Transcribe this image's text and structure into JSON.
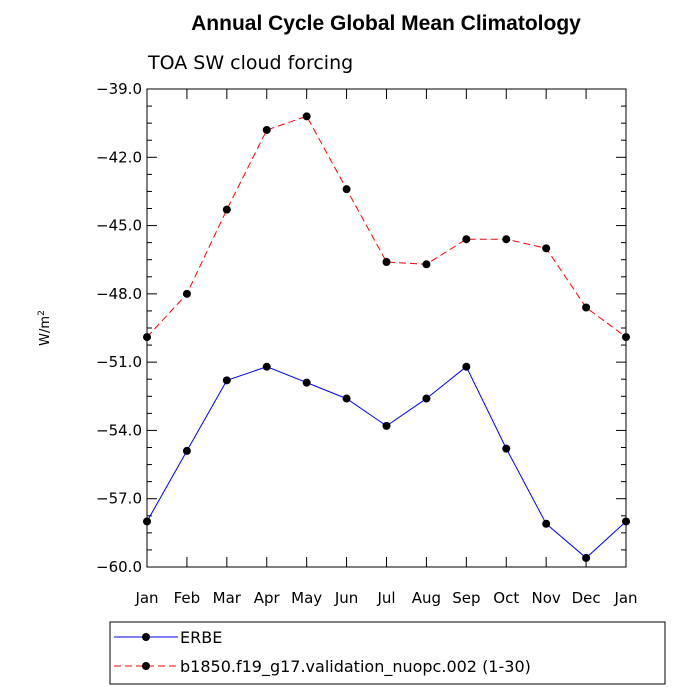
{
  "chart_data": {
    "type": "line",
    "title": "Annual Cycle Global Mean Climatology",
    "subtitle": "TOA SW cloud forcing",
    "ylabel": "W/m",
    "ylabel_superscript": "2",
    "xlabel": "",
    "ylim": [
      -60.0,
      -39.0
    ],
    "yticks": [
      -39.0,
      -42.0,
      -45.0,
      -48.0,
      -51.0,
      -54.0,
      -57.0,
      -60.0
    ],
    "ytick_labels": [
      "−39.0",
      "−42.0",
      "−45.0",
      "−48.0",
      "−51.0",
      "−54.0",
      "−57.0",
      "−60.0"
    ],
    "categories": [
      "Jan",
      "Feb",
      "Mar",
      "Apr",
      "May",
      "Jun",
      "Jul",
      "Aug",
      "Sep",
      "Oct",
      "Nov",
      "Dec",
      "Jan"
    ],
    "grid": false,
    "legend_position": "bottom",
    "series": [
      {
        "name": "ERBE",
        "color": "#0000ff",
        "dash": "solid",
        "marker": "filled-circle",
        "values": [
          -58.0,
          -54.9,
          -51.8,
          -51.2,
          -51.9,
          -52.6,
          -53.8,
          -52.6,
          -51.2,
          -54.8,
          -58.1,
          -59.6,
          -58.0
        ]
      },
      {
        "name": "b1850.f19_g17.validation_nuopc.002 (1-30)",
        "color": "#ff0000",
        "dash": "dashed",
        "marker": "filled-circle",
        "values": [
          -49.9,
          -48.0,
          -44.3,
          -40.8,
          -40.2,
          -43.4,
          -46.6,
          -46.7,
          -45.6,
          -45.6,
          -46.0,
          -48.6,
          -49.9
        ]
      }
    ]
  }
}
